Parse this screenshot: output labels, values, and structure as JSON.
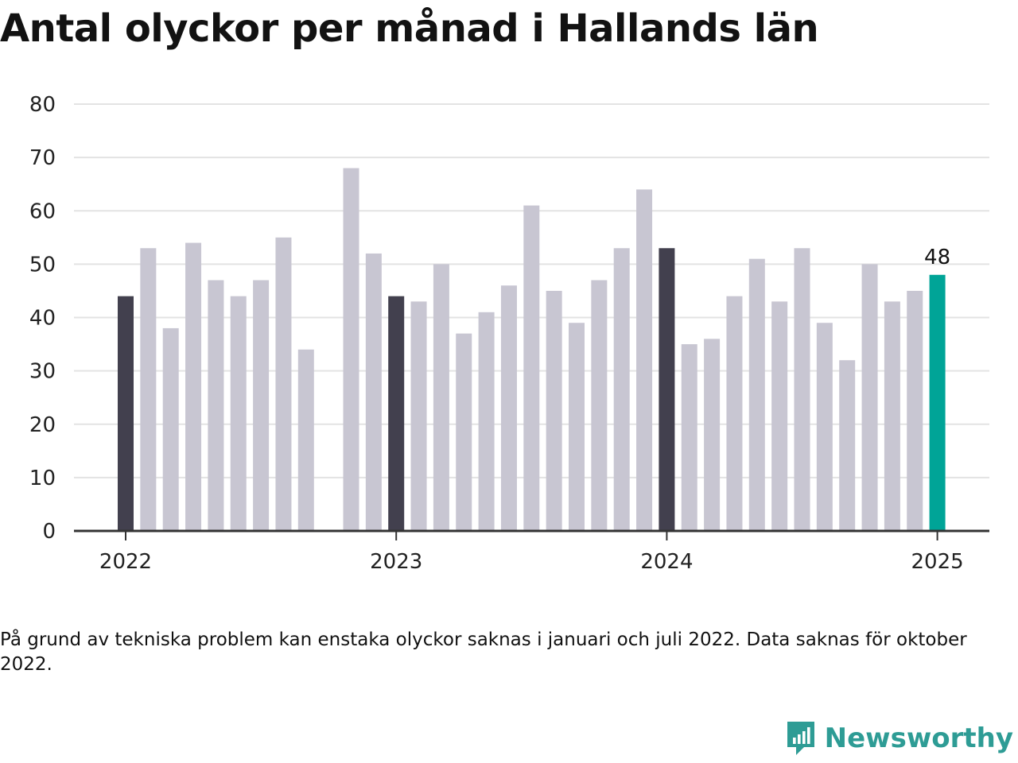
{
  "title": "Antal olyckor per månad i Hallands län",
  "note": "På grund av tekniska problem kan enstaka olyckor saknas i januari och juli 2022. Data saknas för oktober 2022.",
  "brand": {
    "name": "Newsworthy",
    "icon": "newsworthy-logo-icon",
    "color": "#2e9c95"
  },
  "colors": {
    "january": "#42404e",
    "other": "#c8c6d2",
    "latest": "#00a497",
    "grid": "#e3e3e3",
    "axis": "#333333"
  },
  "chart_data": {
    "type": "bar",
    "title": "Antal olyckor per månad i Hallands län",
    "ylim": [
      0,
      80
    ],
    "yticks": [
      "0",
      "10",
      "20",
      "30",
      "40",
      "50",
      "60",
      "70",
      "80"
    ],
    "xticks": [
      "2022",
      "2023",
      "2024",
      "2025"
    ],
    "grid": true,
    "highlight_label": "48",
    "categories": [
      "2022-01",
      "2022-02",
      "2022-03",
      "2022-04",
      "2022-05",
      "2022-06",
      "2022-07",
      "2022-08",
      "2022-09",
      "2022-10",
      "2022-11",
      "2022-12",
      "2023-01",
      "2023-02",
      "2023-03",
      "2023-04",
      "2023-05",
      "2023-06",
      "2023-07",
      "2023-08",
      "2023-09",
      "2023-10",
      "2023-11",
      "2023-12",
      "2024-01",
      "2024-02",
      "2024-03",
      "2024-04",
      "2024-05",
      "2024-06",
      "2024-07",
      "2024-08",
      "2024-09",
      "2024-10",
      "2024-11",
      "2024-12",
      "2025-01"
    ],
    "values": [
      44,
      53,
      38,
      54,
      47,
      44,
      47,
      55,
      34,
      null,
      68,
      52,
      44,
      43,
      50,
      37,
      41,
      46,
      61,
      45,
      39,
      47,
      53,
      64,
      53,
      35,
      36,
      44,
      51,
      43,
      53,
      39,
      32,
      50,
      43,
      45,
      48
    ]
  }
}
